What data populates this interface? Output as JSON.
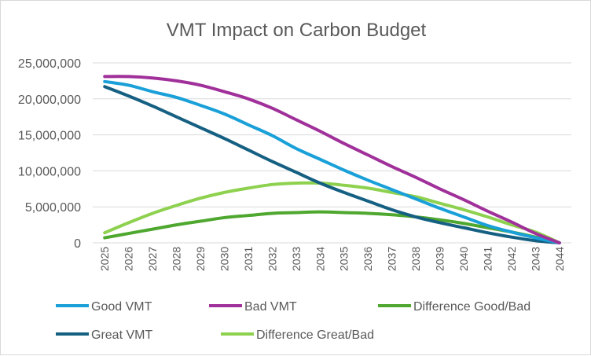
{
  "chart_data": {
    "type": "line",
    "title": "VMT Impact on Carbon Budget",
    "xlabel": "",
    "ylabel": "",
    "ylim": [
      0,
      25000000
    ],
    "yticks": [
      "0",
      "5,000,000",
      "10,000,000",
      "15,000,000",
      "20,000,000",
      "25,000,000"
    ],
    "grid": true,
    "legend_position": "bottom",
    "x": [
      "2025",
      "2026",
      "2027",
      "2028",
      "2029",
      "2030",
      "2031",
      "2032",
      "2033",
      "2034",
      "2035",
      "2036",
      "2037",
      "2038",
      "2039",
      "2040",
      "2041",
      "2042",
      "2043",
      "2044"
    ],
    "series": [
      {
        "name": "Good VMT",
        "color": "#1aa0d8",
        "values": [
          22400000,
          21900000,
          21000000,
          20200000,
          19100000,
          17900000,
          16400000,
          14900000,
          13100000,
          11600000,
          10100000,
          8700000,
          7400000,
          6100000,
          4800000,
          3600000,
          2400000,
          1500000,
          700000,
          0
        ]
      },
      {
        "name": "Bad VMT",
        "color": "#a0309a",
        "values": [
          23100000,
          23100000,
          22900000,
          22500000,
          21900000,
          21000000,
          20000000,
          18700000,
          17100000,
          15500000,
          13800000,
          12200000,
          10600000,
          9100000,
          7500000,
          6000000,
          4400000,
          2900000,
          1300000,
          0
        ]
      },
      {
        "name": "Difference Good/Bad",
        "color": "#4ea72e",
        "values": [
          700000,
          1300000,
          1900000,
          2500000,
          3000000,
          3500000,
          3800000,
          4100000,
          4200000,
          4300000,
          4200000,
          4100000,
          3900000,
          3600000,
          3200000,
          2700000,
          2100000,
          1500000,
          800000,
          0
        ]
      },
      {
        "name": "Great VMT",
        "color": "#156082",
        "values": [
          21700000,
          20400000,
          19000000,
          17500000,
          16000000,
          14500000,
          12900000,
          11300000,
          9800000,
          8300000,
          7000000,
          5800000,
          4600000,
          3600000,
          2800000,
          2100000,
          1400000,
          800000,
          300000,
          0
        ]
      },
      {
        "name": "Difference Great/Bad",
        "color": "#8ed14f",
        "values": [
          1400000,
          2800000,
          4100000,
          5200000,
          6200000,
          7000000,
          7600000,
          8100000,
          8300000,
          8300000,
          8000000,
          7600000,
          7000000,
          6400000,
          5500000,
          4600000,
          3600000,
          2500000,
          1500000,
          0
        ]
      }
    ]
  }
}
